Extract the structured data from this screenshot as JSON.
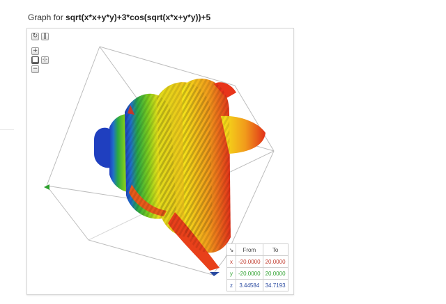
{
  "title": {
    "prefix": "Graph for",
    "expression": "sqrt(x*x+y*y)+3*cos(sqrt(x*x+y*y))+5"
  },
  "controls": {
    "reset_icon": "reset-icon",
    "pause_icon": "pause-icon",
    "zoom_in": "+",
    "zoom_out": "−",
    "camera_icon": "camera-icon",
    "axes_icon": "axes-icon"
  },
  "range_table": {
    "corner_icon": "corner-arrow-icon",
    "header": {
      "from": "From",
      "to": "To"
    },
    "rows": [
      {
        "axis": "x",
        "from": "-20.0000",
        "to": "20.0000",
        "color": "#c0392b"
      },
      {
        "axis": "y",
        "from": "-20.0000",
        "to": "20.0000",
        "color": "#2ca02c"
      },
      {
        "axis": "z",
        "from": "3.44584",
        "to": "34.7193",
        "color": "#2a4aa0"
      }
    ]
  },
  "colors": {
    "surface_low": "#1f3fbf",
    "surface_mid": "#33b833",
    "surface_high": "#f5e61a",
    "surface_peak": "#e8341a",
    "x_axis_arrow": "#c0392b",
    "y_axis_arrow": "#2ca02c",
    "z_axis_arrow": "#2a4aa0"
  }
}
